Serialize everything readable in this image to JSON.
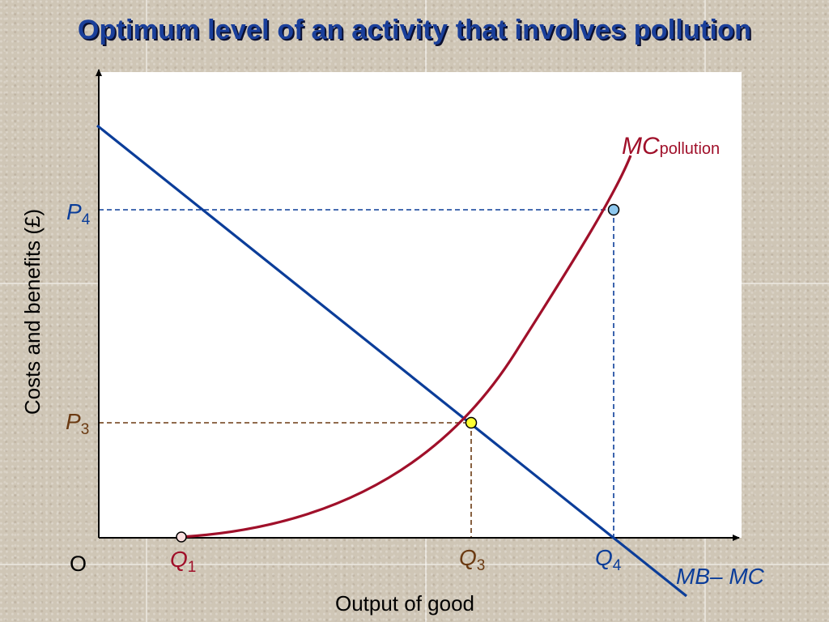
{
  "title": "Optimum level of an activity that involves pollution",
  "axes": {
    "y_label": "Costs and benefits (£)",
    "x_label": "Output of good",
    "origin": "O"
  },
  "curves": {
    "mc_pollution": {
      "main": "MC",
      "sub": "pollution",
      "color": "#a0102a"
    },
    "mb_mc": {
      "text": "MB– MC",
      "color": "#0b3d99"
    }
  },
  "points": {
    "p4": {
      "main": "P",
      "sub": "4",
      "color": "#0b3d99"
    },
    "p3": {
      "main": "P",
      "sub": "3",
      "color": "#6b3a12"
    },
    "q1": {
      "main": "Q",
      "sub": "1",
      "color": "#a0102a"
    },
    "q3": {
      "main": "Q",
      "sub": "3",
      "color": "#6b3a12"
    },
    "q4": {
      "main": "Q",
      "sub": "4",
      "color": "#0b3d99"
    }
  },
  "colors": {
    "blue": "#0b3d99",
    "red": "#a0102a",
    "brown": "#6b3a12",
    "title": "#1a3f9a"
  }
}
